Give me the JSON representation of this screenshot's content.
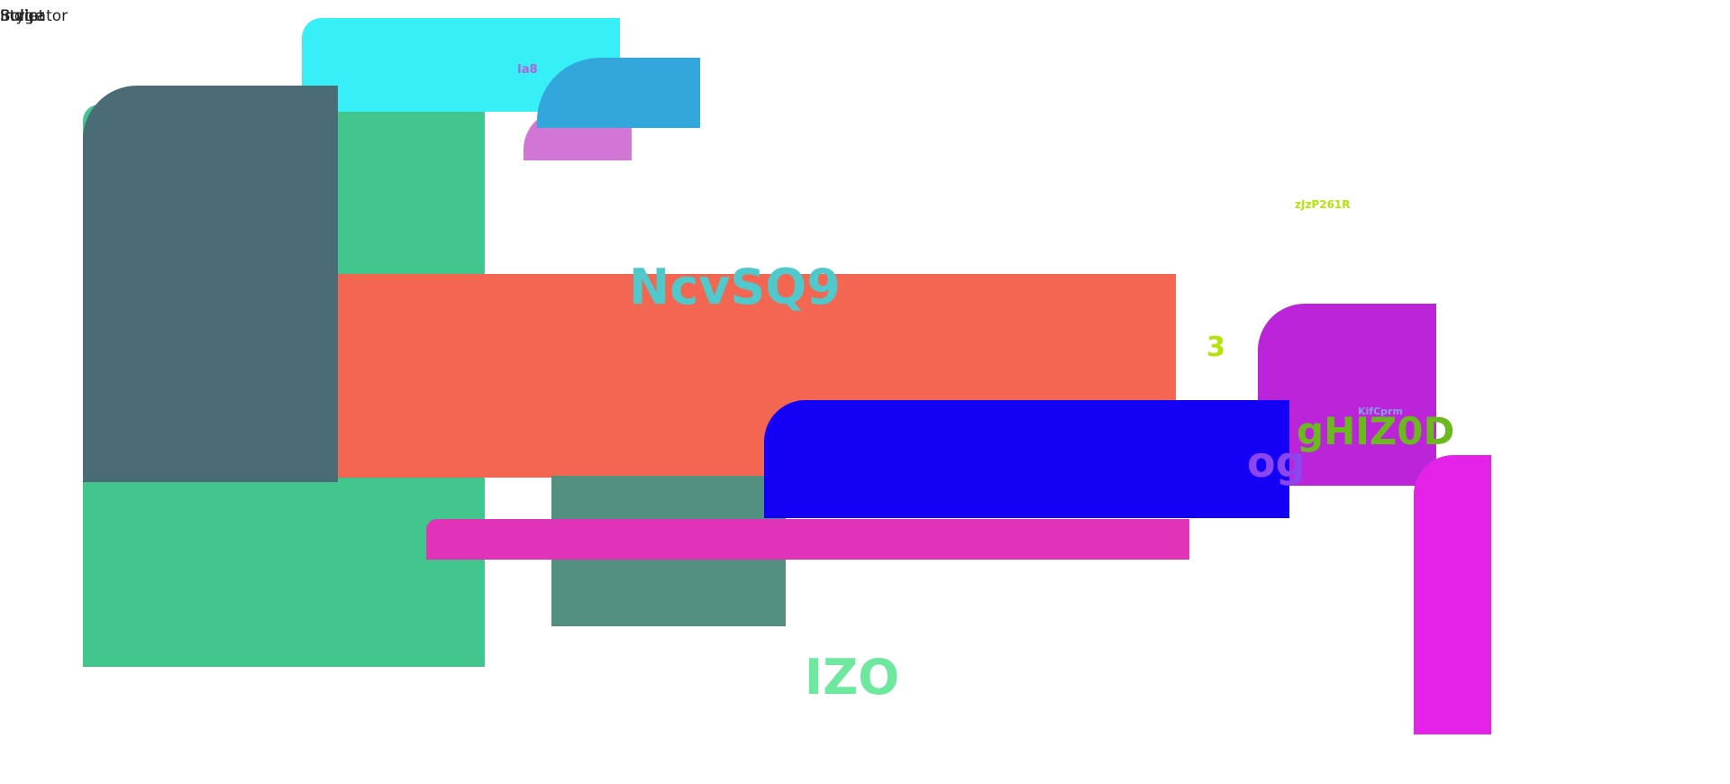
{
  "corner_labels": [
    "Indicator",
    "Script",
    "Bulge",
    "Style"
  ],
  "labels": {
    "ia8": "Ia8",
    "ncvsq9": "NcvSQ9",
    "zjzp": "zJzP261R",
    "three": "3",
    "kifcprm": "KifCprm",
    "ghiz0d": "gHIZ0D",
    "og": "og",
    "izo": "IZO"
  },
  "colors": {
    "green": "#43c58e",
    "slate": "#4a6c76",
    "cyan": "#37f0f7",
    "sky": "#33a6db",
    "orchid": "#d176d5",
    "coral": "#f26652",
    "teal": "#538f7e",
    "blue": "#1300f5",
    "magenta": "#e033b8",
    "purple": "#bb24d9",
    "fuchsia": "#e522e8",
    "label_cyan": "#4fc9cc",
    "label_lime": "#b3e30a",
    "label_olive": "#6bb81f",
    "label_violet": "#8b46f0",
    "label_mint": "#6de89e",
    "label_ia8": "#b45fdc"
  }
}
